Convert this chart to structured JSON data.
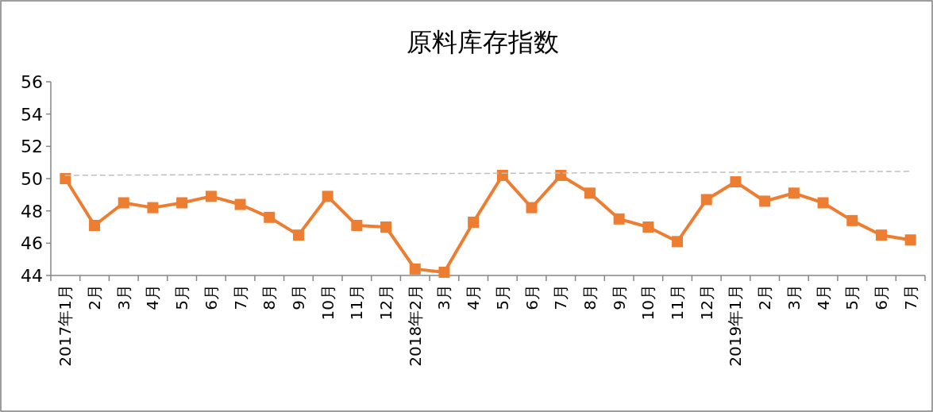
{
  "chart_data": {
    "type": "line",
    "title": "原料库存指数",
    "categories": [
      "2017年1月",
      "2月",
      "3月",
      "4月",
      "5月",
      "6月",
      "7月",
      "8月",
      "9月",
      "10月",
      "11月",
      "12月",
      "2018年2月",
      "3月",
      "4月",
      "5月",
      "6月",
      "7月",
      "8月",
      "9月",
      "10月",
      "11月",
      "12月",
      "2019年1月",
      "2月",
      "3月",
      "4月",
      "5月",
      "6月",
      "7月"
    ],
    "series": [
      {
        "color": "#ed7d31",
        "marker": "square",
        "line_style": "solid",
        "values": [
          50.0,
          47.1,
          48.5,
          48.2,
          48.5,
          48.9,
          48.4,
          47.6,
          46.5,
          48.9,
          47.1,
          47.0,
          44.4,
          44.2,
          47.3,
          50.2,
          48.2,
          50.2,
          49.1,
          47.5,
          47.0,
          46.1,
          48.7,
          49.8,
          48.6,
          49.1,
          48.5,
          47.4,
          46.5,
          46.2
        ]
      },
      {
        "type": "line",
        "color": "#bfbfbf",
        "marker": "none",
        "line_style": "dashed",
        "values": [
          50.2,
          null,
          null,
          null,
          null,
          null,
          null,
          null,
          null,
          null,
          null,
          null,
          null,
          null,
          null,
          null,
          null,
          null,
          null,
          null,
          null,
          null,
          null,
          null,
          null,
          null,
          null,
          null,
          null,
          50.45
        ]
      }
    ],
    "ylim": [
      44,
      56
    ],
    "yticks": [
      44,
      46,
      48,
      50,
      52,
      54,
      56
    ],
    "grid": false
  }
}
